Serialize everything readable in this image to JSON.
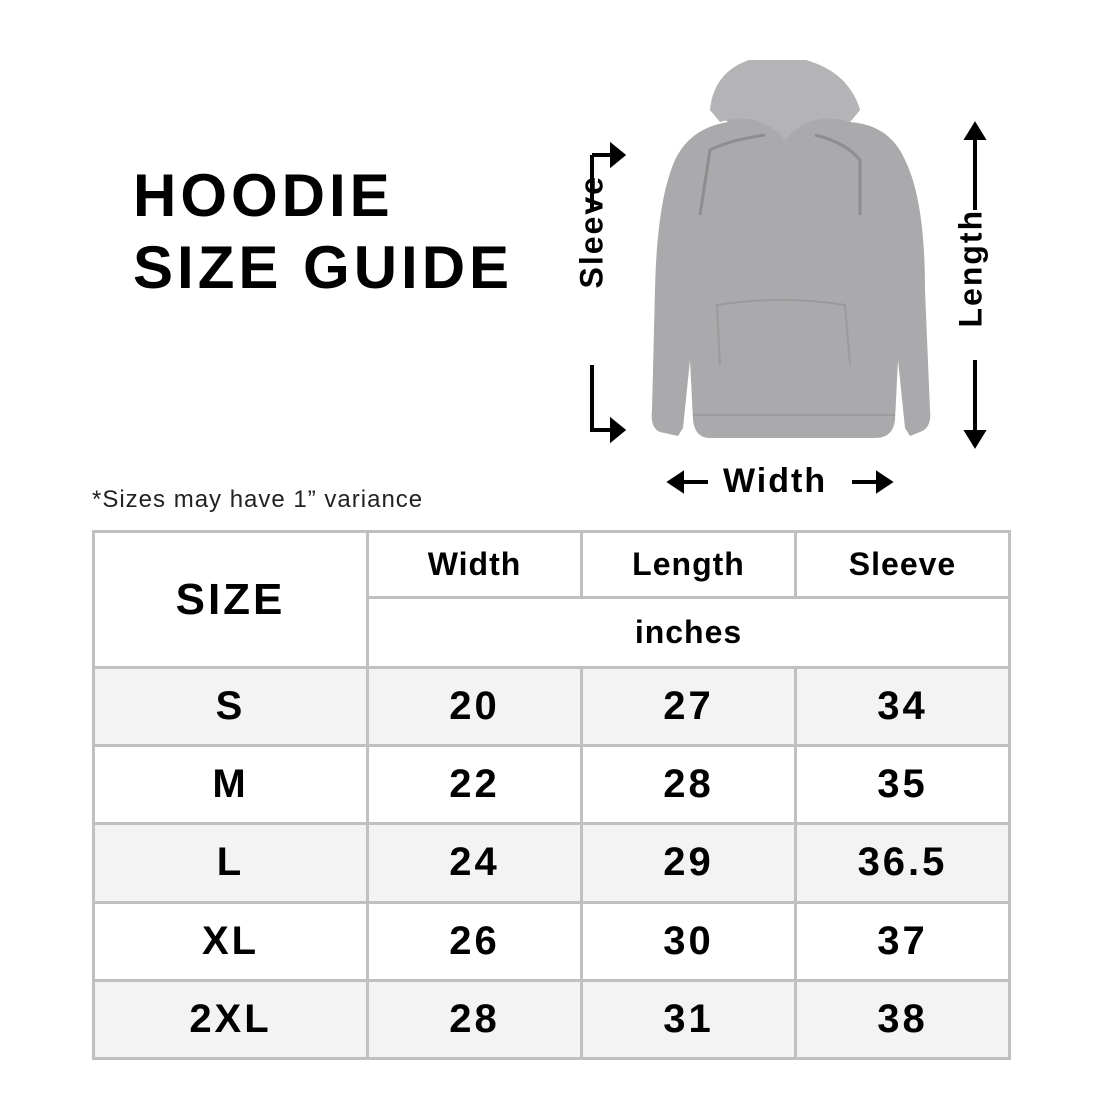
{
  "title": {
    "line1": "HOODIE",
    "line2": "SIZE GUIDE"
  },
  "diagram": {
    "sleeve_label": "Sleeve",
    "length_label": "Length",
    "width_label": "Width",
    "garment_color": "#a9a9ab"
  },
  "note": "*Sizes may have 1” variance",
  "table": {
    "size_header": "SIZE",
    "columns": [
      "Width",
      "Length",
      "Sleeve"
    ],
    "unit": "inches",
    "rows": [
      {
        "size": "S",
        "width": "20",
        "length": "27",
        "sleeve": "34"
      },
      {
        "size": "M",
        "width": "22",
        "length": "28",
        "sleeve": "35"
      },
      {
        "size": "L",
        "width": "24",
        "length": "29",
        "sleeve": "36.5"
      },
      {
        "size": "XL",
        "width": "26",
        "length": "30",
        "sleeve": "37"
      },
      {
        "size": "2XL",
        "width": "28",
        "length": "31",
        "sleeve": "38"
      }
    ],
    "border_color": "#c0c0c0",
    "stripe_color": "#f3f3f3"
  }
}
